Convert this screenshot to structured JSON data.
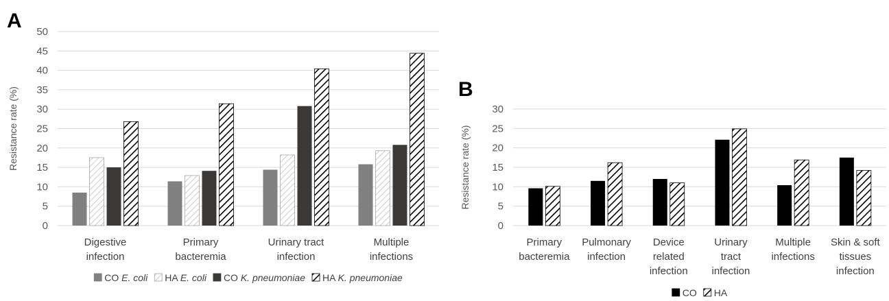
{
  "chart_data": [
    {
      "panel": "A",
      "type": "bar",
      "ylabel": "Resistance rate (%)",
      "ylim": [
        0,
        50
      ],
      "yticks": [
        0,
        5,
        10,
        15,
        20,
        25,
        30,
        35,
        40,
        45,
        50
      ],
      "grid": true,
      "legend_position": "bottom",
      "categories": [
        [
          "Digestive",
          "infection"
        ],
        [
          "Primary",
          "bacteremia"
        ],
        [
          "Urinary tract",
          "infection"
        ],
        [
          "Multiple",
          "infections"
        ]
      ],
      "series": [
        {
          "name": "CO E. coli",
          "prefix": "CO ",
          "organism": "E. coli",
          "fill": "#808080",
          "pattern": "solid",
          "values": [
            8.5,
            11.4,
            14.4,
            15.8
          ]
        },
        {
          "name": "HA E. coli",
          "prefix": "HA ",
          "organism": "E. coli",
          "fill": "#ffffff",
          "pattern": "light-hatch",
          "values": [
            17.5,
            12.9,
            18.2,
            19.3
          ]
        },
        {
          "name": "CO K. pneumoniae",
          "prefix": "CO ",
          "organism": "K. pneumoniae",
          "fill": "#3b3838",
          "pattern": "solid",
          "values": [
            15.0,
            14.1,
            30.8,
            20.8
          ]
        },
        {
          "name": "HA K. pneumoniae",
          "prefix": "HA ",
          "organism": "K. pneumoniae",
          "fill": "#ffffff",
          "pattern": "dark-hatch",
          "values": [
            26.8,
            31.4,
            40.4,
            44.4
          ]
        }
      ]
    },
    {
      "panel": "B",
      "type": "bar",
      "ylabel": "Resistance rate (%)",
      "ylim": [
        0,
        30
      ],
      "yticks": [
        0,
        5,
        10,
        15,
        20,
        25,
        30
      ],
      "grid": true,
      "legend_position": "bottom",
      "categories": [
        [
          "Primary",
          "bacteremia"
        ],
        [
          "Pulmonary",
          "infection"
        ],
        [
          "Device",
          "related",
          "infection"
        ],
        [
          "Urinary",
          "tract",
          "infection"
        ],
        [
          "Multiple",
          "infections"
        ],
        [
          "Skin & soft",
          "tissues",
          "infection"
        ]
      ],
      "series": [
        {
          "name": "CO",
          "fill": "#000000",
          "pattern": "solid",
          "values": [
            9.6,
            11.5,
            12.0,
            22.1,
            10.4,
            17.5
          ]
        },
        {
          "name": "HA",
          "fill": "#ffffff",
          "pattern": "dark-hatch",
          "values": [
            10.1,
            16.2,
            11.0,
            24.9,
            16.9,
            14.2
          ]
        }
      ]
    }
  ]
}
